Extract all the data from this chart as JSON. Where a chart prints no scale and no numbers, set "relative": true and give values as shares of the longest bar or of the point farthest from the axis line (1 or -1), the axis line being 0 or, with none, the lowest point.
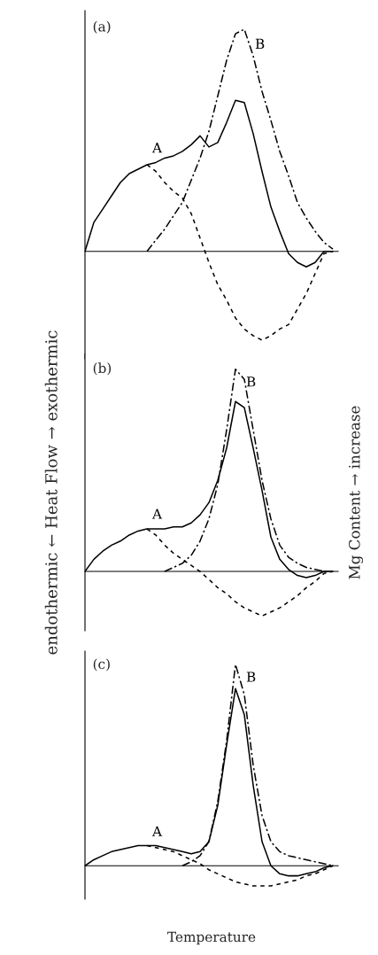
{
  "chart_data": [
    {
      "type": "line",
      "relative": true,
      "legend": false,
      "grid": false,
      "categories": [
        null,
        null,
        null,
        null,
        null,
        null,
        null,
        null,
        null,
        null,
        null,
        null,
        null,
        null,
        null,
        null,
        null,
        null,
        null,
        null,
        null,
        null,
        null,
        null,
        null,
        null,
        null,
        null,
        null
      ],
      "series": [
        {
          "color": "#000000",
          "line_style": "solid",
          "values": [
            0,
            0.13,
            0.19,
            0.25,
            0.31,
            0.35,
            0.37,
            0.39,
            0.4,
            0.42,
            0.43,
            0.45,
            0.48,
            0.52,
            0.47,
            0.49,
            0.58,
            0.68,
            0.67,
            0.53,
            0.36,
            0.2,
            0.09,
            -0.01,
            -0.05,
            -0.07,
            -0.05,
            0,
            0
          ]
        },
        {
          "name": "A",
          "color": "#000000",
          "line_style": "dashed",
          "values": [
            null,
            null,
            null,
            null,
            null,
            null,
            null,
            0.39,
            0.36,
            0.31,
            0.27,
            0.24,
            0.17,
            0.06,
            -0.05,
            -0.15,
            -0.22,
            -0.3,
            -0.35,
            -0.38,
            -0.4,
            -0.38,
            -0.35,
            -0.33,
            -0.26,
            -0.19,
            -0.1,
            -0.01,
            0
          ]
        },
        {
          "name": "B",
          "color": "#000000",
          "line_style": "dotted",
          "values": [
            null,
            null,
            null,
            null,
            null,
            null,
            null,
            0,
            0.05,
            0.1,
            0.16,
            0.22,
            0.32,
            0.42,
            0.54,
            0.7,
            0.86,
            0.98,
            1.0,
            0.88,
            0.72,
            0.59,
            0.45,
            0.34,
            0.22,
            0.15,
            0.09,
            0.04,
            0.01
          ]
        }
      ],
      "annotations": [
        "(a)"
      ]
    },
    {
      "type": "line",
      "relative": true,
      "legend": false,
      "grid": false,
      "categories": [
        null,
        null,
        null,
        null,
        null,
        null,
        null,
        null,
        null,
        null,
        null,
        null,
        null,
        null,
        null,
        null,
        null,
        null,
        null,
        null,
        null,
        null,
        null,
        null,
        null,
        null,
        null,
        null,
        null
      ],
      "ylabel": "endothermic ← Heat Flow → exothermic",
      "y2label": "Mg Content → increase",
      "series": [
        {
          "color": "#000000",
          "line_style": "solid",
          "values": [
            0,
            0.06,
            0.1,
            0.13,
            0.15,
            0.18,
            0.2,
            0.21,
            0.21,
            0.21,
            0.22,
            0.22,
            0.24,
            0.28,
            0.34,
            0.45,
            0.61,
            0.84,
            0.81,
            0.61,
            0.4,
            0.17,
            0.06,
            0.01,
            -0.02,
            -0.03,
            -0.02,
            0,
            0
          ]
        },
        {
          "name": "A",
          "color": "#000000",
          "line_style": "dashed",
          "values": [
            null,
            null,
            null,
            null,
            null,
            null,
            null,
            0.21,
            0.18,
            0.13,
            0.09,
            0.06,
            0.03,
            0,
            -0.04,
            -0.08,
            -0.11,
            -0.15,
            -0.18,
            -0.2,
            -0.22,
            -0.2,
            -0.18,
            -0.15,
            -0.12,
            -0.08,
            -0.05,
            -0.01,
            0
          ]
        },
        {
          "name": "B",
          "color": "#000000",
          "line_style": "dotted",
          "values": [
            null,
            null,
            null,
            null,
            null,
            null,
            null,
            null,
            null,
            0,
            0.02,
            0.04,
            0.08,
            0.15,
            0.26,
            0.43,
            0.7,
            1.0,
            0.95,
            0.7,
            0.45,
            0.26,
            0.13,
            0.07,
            0.04,
            0.02,
            0.01,
            0,
            0
          ]
        }
      ],
      "annotations": [
        "(b)"
      ]
    },
    {
      "type": "line",
      "relative": true,
      "legend": false,
      "grid": false,
      "categories": [
        null,
        null,
        null,
        null,
        null,
        null,
        null,
        null,
        null,
        null,
        null,
        null,
        null,
        null,
        null,
        null,
        null,
        null,
        null,
        null,
        null,
        null,
        null,
        null,
        null,
        null,
        null,
        null,
        null
      ],
      "xlabel": "Temperature",
      "series": [
        {
          "color": "#000000",
          "line_style": "solid",
          "values": [
            0,
            0.03,
            0.05,
            0.07,
            0.08,
            0.09,
            0.1,
            0.1,
            0.1,
            0.09,
            0.08,
            0.07,
            0.06,
            0.07,
            0.12,
            0.3,
            0.6,
            0.88,
            0.75,
            0.4,
            0.12,
            0,
            -0.04,
            -0.05,
            -0.05,
            -0.04,
            -0.03,
            -0.01,
            0
          ]
        },
        {
          "name": "A",
          "color": "#000000",
          "line_style": "dashed",
          "values": [
            null,
            null,
            null,
            null,
            null,
            null,
            null,
            0.1,
            0.09,
            0.08,
            0.07,
            0.05,
            0.03,
            0.01,
            -0.02,
            -0.04,
            -0.06,
            -0.08,
            -0.09,
            -0.1,
            -0.1,
            -0.1,
            -0.09,
            -0.08,
            -0.07,
            -0.05,
            -0.04,
            -0.02,
            0
          ]
        },
        {
          "name": "B",
          "color": "#000000",
          "line_style": "dotted",
          "values": [
            null,
            null,
            null,
            null,
            null,
            null,
            null,
            null,
            null,
            null,
            null,
            0,
            0.02,
            0.05,
            0.12,
            0.32,
            0.62,
            1.0,
            0.85,
            0.5,
            0.25,
            0.12,
            0.07,
            0.05,
            0.04,
            0.03,
            0.02,
            0.01,
            0
          ]
        }
      ],
      "annotations": [
        "(c)"
      ]
    }
  ]
}
